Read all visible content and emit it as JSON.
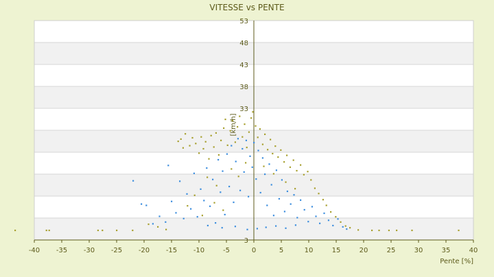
{
  "chart_data": {
    "type": "scatter",
    "title": "VITESSE vs PENTE",
    "xlabel": "Pente [%]",
    "ylabel": "[km/h]",
    "xlim": [
      -40,
      40
    ],
    "ylim": [
      3,
      53
    ],
    "x_ticks": [
      -40,
      -35,
      -30,
      -25,
      -20,
      -15,
      -10,
      -5,
      0,
      5,
      10,
      15,
      20,
      25,
      30,
      35,
      40
    ],
    "y_ticks": [
      3,
      8,
      13,
      18,
      23,
      28,
      33,
      38,
      43,
      48,
      53
    ],
    "y_tick_labels": [
      "3",
      "",
      "",
      "",
      "",
      "",
      "33",
      "38",
      "43",
      "48",
      "53"
    ],
    "grid": "horizontal bands",
    "legend": "none",
    "series": [
      {
        "color": "#a8a030",
        "points": [
          [
            -43.5,
            5.2
          ],
          [
            -37.8,
            5.2
          ],
          [
            -37.3,
            5.2
          ],
          [
            -28.4,
            5.2
          ],
          [
            -27.6,
            5.2
          ],
          [
            -25.0,
            5.2
          ],
          [
            -22.1,
            5.2
          ],
          [
            -19.2,
            6.6
          ],
          [
            -17.5,
            6.0
          ],
          [
            -16.0,
            5.4
          ],
          [
            -13.8,
            25.5
          ],
          [
            -13.3,
            26.0
          ],
          [
            -12.9,
            24.0
          ],
          [
            -12.5,
            27.2
          ],
          [
            -11.7,
            24.5
          ],
          [
            -11.2,
            26.3
          ],
          [
            -10.6,
            25.0
          ],
          [
            -10.0,
            22.8
          ],
          [
            -9.6,
            26.5
          ],
          [
            -9.2,
            23.8
          ],
          [
            -8.8,
            25.4
          ],
          [
            -8.2,
            21.5
          ],
          [
            -7.8,
            26.8
          ],
          [
            -7.3,
            24.2
          ],
          [
            -6.9,
            27.4
          ],
          [
            -6.4,
            22.4
          ],
          [
            -6.0,
            25.7
          ],
          [
            -5.5,
            28.5
          ],
          [
            -5.2,
            30.5
          ],
          [
            -4.8,
            24.6
          ],
          [
            -4.3,
            27.9
          ],
          [
            -3.9,
            30.2
          ],
          [
            -3.4,
            25.3
          ],
          [
            -3.0,
            28.8
          ],
          [
            -2.6,
            31.2
          ],
          [
            -2.1,
            26.5
          ],
          [
            -1.7,
            29.4
          ],
          [
            -1.3,
            24.1
          ],
          [
            -0.9,
            27.6
          ],
          [
            -0.5,
            30.8
          ],
          [
            -0.2,
            32.2
          ],
          [
            0.3,
            29.0
          ],
          [
            0.7,
            26.4
          ],
          [
            1.1,
            28.3
          ],
          [
            1.6,
            24.8
          ],
          [
            2.0,
            27.1
          ],
          [
            2.5,
            23.6
          ],
          [
            3.0,
            25.9
          ],
          [
            3.4,
            22.7
          ],
          [
            3.9,
            24.4
          ],
          [
            4.4,
            21.9
          ],
          [
            4.9,
            23.5
          ],
          [
            5.5,
            20.8
          ],
          [
            6.0,
            22.3
          ],
          [
            6.6,
            19.6
          ],
          [
            7.2,
            21.2
          ],
          [
            7.8,
            18.8
          ],
          [
            8.5,
            20.1
          ],
          [
            9.1,
            17.9
          ],
          [
            9.8,
            18.6
          ],
          [
            10.4,
            16.7
          ],
          [
            11.1,
            14.8
          ],
          [
            11.8,
            13.6
          ],
          [
            12.6,
            12.2
          ],
          [
            13.2,
            10.9
          ],
          [
            14.0,
            9.4
          ],
          [
            14.9,
            8.3
          ],
          [
            15.8,
            7.1
          ],
          [
            16.7,
            6.2
          ],
          [
            17.5,
            5.8
          ],
          [
            -4.1,
            19.2
          ],
          [
            -2.8,
            17.5
          ],
          [
            -1.5,
            20.6
          ],
          [
            1.8,
            19.8
          ],
          [
            3.6,
            18.1
          ],
          [
            5.8,
            16.2
          ],
          [
            7.5,
            14.7
          ],
          [
            -6.8,
            15.4
          ],
          [
            -8.5,
            17.3
          ],
          [
            -10.8,
            13.2
          ],
          [
            -12.1,
            10.8
          ],
          [
            -9.4,
            8.6
          ],
          [
            -7.2,
            11.5
          ],
          [
            -5.6,
            9.8
          ],
          [
            19.0,
            5.3
          ],
          [
            21.5,
            5.2
          ],
          [
            22.8,
            5.2
          ],
          [
            24.6,
            5.2
          ],
          [
            26.0,
            5.2
          ],
          [
            28.8,
            5.2
          ],
          [
            37.3,
            5.2
          ]
        ]
      },
      {
        "color": "#3d8ede",
        "points": [
          [
            -22.0,
            16.5
          ],
          [
            -20.5,
            11.2
          ],
          [
            -19.6,
            10.9
          ],
          [
            -18.4,
            6.7
          ],
          [
            -17.2,
            8.4
          ],
          [
            -16.1,
            7.1
          ],
          [
            -15.6,
            20.0
          ],
          [
            -15.0,
            11.8
          ],
          [
            -14.2,
            9.2
          ],
          [
            -13.5,
            16.4
          ],
          [
            -12.8,
            7.9
          ],
          [
            -12.2,
            13.5
          ],
          [
            -11.5,
            10.1
          ],
          [
            -10.9,
            18.2
          ],
          [
            -10.3,
            8.3
          ],
          [
            -9.7,
            14.6
          ],
          [
            -9.1,
            12.0
          ],
          [
            -8.6,
            19.4
          ],
          [
            -8.0,
            10.7
          ],
          [
            -7.5,
            16.8
          ],
          [
            -7.0,
            6.9
          ],
          [
            -6.5,
            21.3
          ],
          [
            -6.1,
            13.9
          ],
          [
            -5.7,
            18.7
          ],
          [
            -5.3,
            8.8
          ],
          [
            -4.9,
            22.6
          ],
          [
            -4.5,
            15.2
          ],
          [
            -4.1,
            24.5
          ],
          [
            -3.7,
            11.6
          ],
          [
            -3.3,
            20.9
          ],
          [
            -2.9,
            26.1
          ],
          [
            -2.5,
            14.3
          ],
          [
            -2.1,
            23.8
          ],
          [
            -1.8,
            18.5
          ],
          [
            -1.4,
            25.7
          ],
          [
            -1.0,
            12.9
          ],
          [
            -0.7,
            22.1
          ],
          [
            -0.3,
            19.6
          ],
          [
            0.0,
            25.2
          ],
          [
            0.4,
            16.9
          ],
          [
            0.8,
            23.4
          ],
          [
            1.2,
            13.8
          ],
          [
            1.6,
            21.7
          ],
          [
            2.0,
            18.0
          ],
          [
            2.4,
            10.9
          ],
          [
            2.8,
            20.3
          ],
          [
            3.2,
            15.6
          ],
          [
            3.6,
            8.6
          ],
          [
            4.1,
            18.9
          ],
          [
            4.6,
            12.4
          ],
          [
            5.1,
            16.7
          ],
          [
            5.6,
            9.5
          ],
          [
            6.1,
            14.1
          ],
          [
            6.7,
            11.2
          ],
          [
            7.3,
            13.3
          ],
          [
            7.9,
            8.1
          ],
          [
            8.5,
            12.1
          ],
          [
            9.2,
            9.9
          ],
          [
            9.9,
            7.2
          ],
          [
            10.6,
            10.6
          ],
          [
            11.3,
            8.4
          ],
          [
            12.0,
            6.8
          ],
          [
            12.8,
            9.1
          ],
          [
            13.6,
            7.5
          ],
          [
            14.4,
            6.3
          ],
          [
            15.3,
            7.8
          ],
          [
            16.2,
            6.0
          ],
          [
            16.9,
            5.5
          ],
          [
            -1.2,
            5.4
          ],
          [
            0.6,
            5.6
          ],
          [
            2.2,
            5.9
          ],
          [
            4.0,
            6.2
          ],
          [
            5.8,
            5.7
          ],
          [
            7.6,
            6.4
          ],
          [
            -3.4,
            6.1
          ],
          [
            -5.8,
            5.8
          ],
          [
            -8.4,
            6.3
          ]
        ]
      }
    ]
  }
}
